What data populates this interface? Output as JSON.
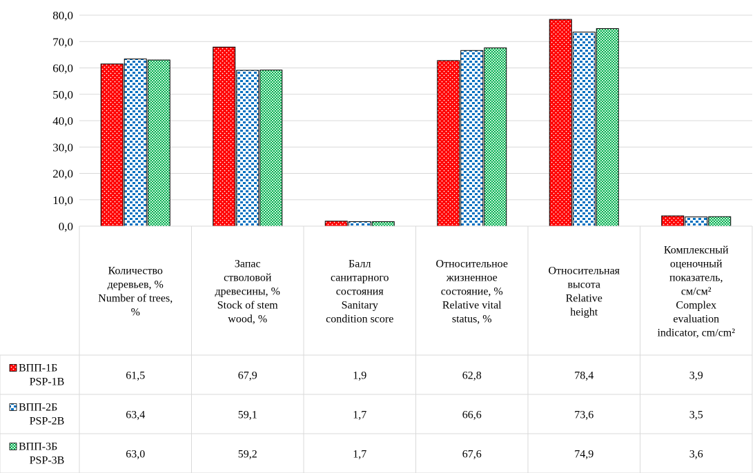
{
  "chart_data": {
    "type": "bar",
    "title": "",
    "xlabel": "",
    "ylabel": "",
    "ylim": [
      0,
      80
    ],
    "yticks": [
      "0,0",
      "10,0",
      "20,0",
      "30,0",
      "40,0",
      "50,0",
      "60,0",
      "70,0",
      "80,0"
    ],
    "grid": true,
    "legend": "data-table-rows",
    "categories": [
      [
        "Количество",
        "деревьев, %",
        "Number of trees,",
        "%"
      ],
      [
        "Запас",
        "стволовой",
        "древесины, %",
        "Stock of stem",
        "wood, %"
      ],
      [
        "Балл",
        "санитарного",
        "состояния",
        "Sanitary",
        "condition score"
      ],
      [
        "Относительное",
        "жизненное",
        "состояние, %",
        "Relative vital",
        "status, %"
      ],
      [
        "Относительная",
        "высота",
        "Relative",
        "height"
      ],
      [
        "Комплексный",
        "оценочный",
        "показатель,",
        "см/см²",
        "Complex",
        "evaluation",
        "indicator, cm/cm²"
      ]
    ],
    "series": [
      {
        "name": [
          "ВПП-1Б",
          "PSP-1B"
        ],
        "color": "#ff0000",
        "pattern": "red-dots",
        "values": [
          61.5,
          67.9,
          1.9,
          62.8,
          78.4,
          3.9
        ],
        "labels": [
          "61,5",
          "67,9",
          "1,9",
          "62,8",
          "78,4",
          "3,9"
        ]
      },
      {
        "name": [
          "ВПП-2Б",
          "PSP-2B"
        ],
        "color": "#0070c0",
        "pattern": "blue-checks",
        "values": [
          63.4,
          59.1,
          1.7,
          66.6,
          73.6,
          3.5
        ],
        "labels": [
          "63,4",
          "59,1",
          "1,7",
          "66,6",
          "73,6",
          "3,5"
        ]
      },
      {
        "name": [
          "ВПП-3Б",
          "PSP-3B"
        ],
        "color": "#00b050",
        "pattern": "green-grid",
        "values": [
          63.0,
          59.2,
          1.7,
          67.6,
          74.9,
          3.6
        ],
        "labels": [
          "63,0",
          "59,2",
          "1,7",
          "67,6",
          "74,9",
          "3,6"
        ]
      }
    ]
  }
}
